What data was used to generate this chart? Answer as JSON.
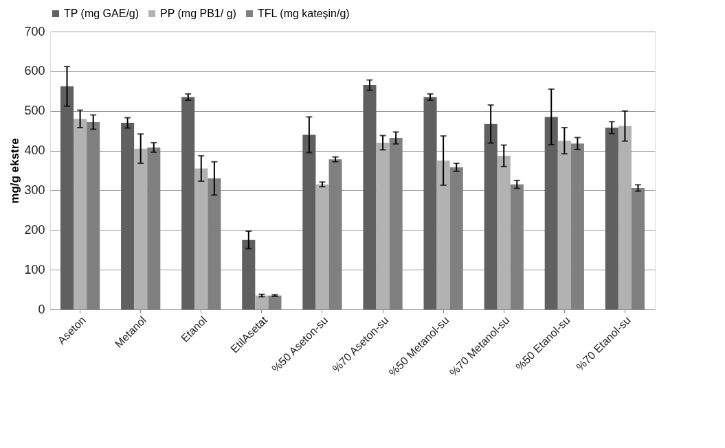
{
  "chart_data": {
    "type": "bar",
    "ylabel": "mg/g ekstre",
    "categories": [
      "Aseton",
      "Metanol",
      "Etanol",
      "EtilAsetat",
      "%50 Aseton-su",
      "%70 Aseton-su",
      "%50 Metanol-su",
      "%70 Metanol-su",
      "%50 Etanol-su",
      "%70 Etanol-su"
    ],
    "series": [
      {
        "name": "TP (mg GAE/g)",
        "color": "#606060",
        "values": [
          562,
          470,
          535,
          175,
          440,
          565,
          535,
          467,
          485,
          458
        ],
        "errors": [
          50,
          13,
          8,
          22,
          45,
          13,
          8,
          48,
          70,
          15
        ]
      },
      {
        "name": "PP (mg PB1/ g)",
        "color": "#b2b2b2",
        "values": [
          480,
          405,
          355,
          35,
          315,
          420,
          375,
          387,
          425,
          462
        ],
        "errors": [
          22,
          37,
          32,
          3,
          6,
          18,
          62,
          27,
          33,
          38
        ]
      },
      {
        "name": "TFL (mg kateşin/g)",
        "color": "#808080",
        "values": [
          472,
          408,
          330,
          35,
          378,
          432,
          358,
          315,
          418,
          306
        ],
        "errors": [
          18,
          12,
          42,
          2,
          6,
          15,
          10,
          10,
          15,
          8
        ]
      }
    ],
    "ylim": [
      0,
      700
    ],
    "yticks": [
      0,
      100,
      200,
      300,
      400,
      500,
      600,
      700
    ],
    "grid": "y",
    "legend": "top"
  }
}
